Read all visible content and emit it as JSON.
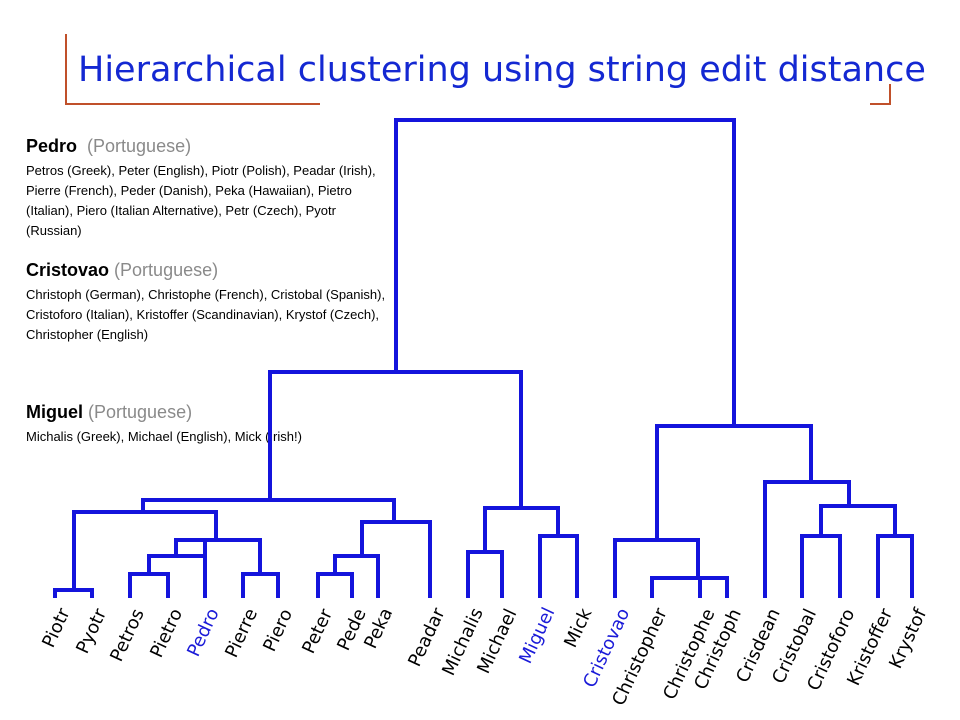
{
  "title": "Hierarchical clustering using string edit distance",
  "blocks": [
    {
      "name": "Pedro",
      "lang": "(Portuguese)",
      "text": "Petros (Greek), Peter (English), Piotr (Polish), Peadar (Irish), Pierre (French), Peder (Danish), Peka (Hawaiian), Pietro (Italian), Piero (Italian Alternative), Petr (Czech), Pyotr (Russian)"
    },
    {
      "name": "Cristovao",
      "lang": "(Portuguese)",
      "text": "Christoph (German), Christophe (French), Cristobal (Spanish), Cristoforo (Italian), Kristoffer (Scandinavian), Krystof (Czech), Christopher (English)"
    },
    {
      "name": "Miguel",
      "lang": "(Portuguese)",
      "text": "Michalis (Greek), Michael (English), Mick (Irish!)"
    }
  ],
  "leaves": [
    "Piotr",
    "Pyotr",
    "Petros",
    "Pietro",
    "Pedro",
    "Pierre",
    "Piero",
    "Peter",
    "Pede",
    "Peka",
    "Peadar",
    "Michalis",
    "Michael",
    "Miguel",
    "Mick",
    "Cristovao",
    "Christopher",
    "Christophe",
    "Christoph",
    "Crisdean",
    "Cristobal",
    "Cristoforo",
    "Kristoffer",
    "Krystof"
  ],
  "highlighted_leaves": [
    "Pedro",
    "Miguel",
    "Cristovao"
  ],
  "colors": {
    "title": "#1428d2",
    "tree": "#1414dc",
    "frame": "#c0502a",
    "highlight": "#1a1ad8"
  }
}
